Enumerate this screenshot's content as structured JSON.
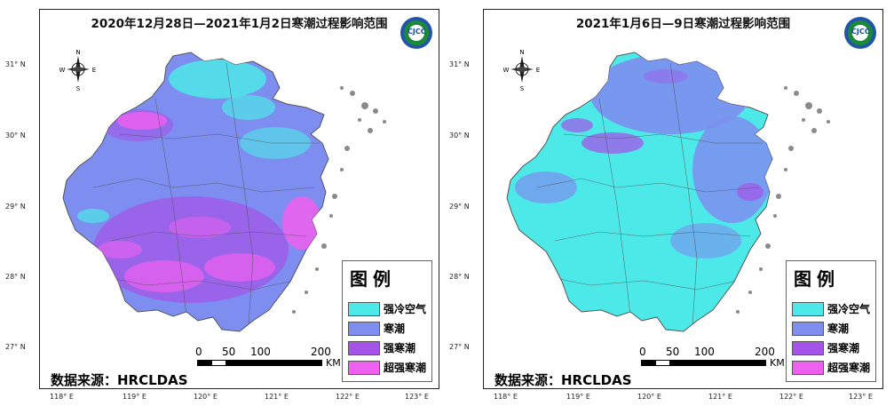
{
  "panels": [
    {
      "title": "2020年12月28日—2021年1月2日寒潮过程影响范围",
      "map_variant": "left",
      "source_label": "数据来源：HRCLDAS"
    },
    {
      "title": "2021年1月6日—9日寒潮过程影响范围",
      "map_variant": "right",
      "source_label": "数据来源：HRCLDAS"
    }
  ],
  "legend": {
    "title": "图例",
    "items": [
      {
        "label": "强冷空气",
        "color": "#4de8e8"
      },
      {
        "label": "寒潮",
        "color": "#7d8ef0"
      },
      {
        "label": "强寒潮",
        "color": "#a455e8"
      },
      {
        "label": "超强寒潮",
        "color": "#f060f0"
      }
    ]
  },
  "latitude_labels": [
    "31° N",
    "30° N",
    "29° N",
    "28° N",
    "27° N"
  ],
  "longitude_labels": [
    "118° E",
    "119° E",
    "120° E",
    "121° E",
    "122° E",
    "123° E"
  ],
  "scale_bar": {
    "ticks": [
      "0",
      "50",
      "100",
      "200"
    ],
    "unit": "KM"
  },
  "compass": {
    "n": "N",
    "s": "S",
    "e": "E",
    "w": "W"
  },
  "logo_text": "CJCC",
  "colors": {
    "land_gray": "#888888",
    "boundary": "#555555",
    "title": "#111111"
  }
}
